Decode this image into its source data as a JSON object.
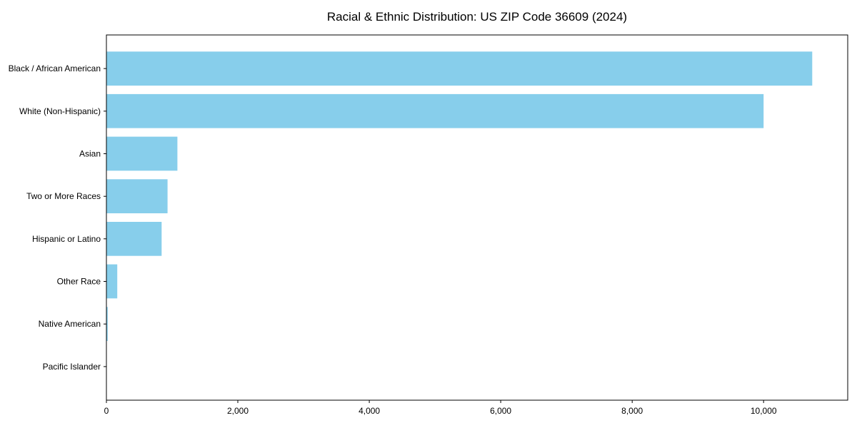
{
  "chart_data": {
    "type": "bar",
    "orientation": "horizontal",
    "title": "Racial & Ethnic Distribution: US ZIP Code 36609 (2024)",
    "categories": [
      "Black / African American",
      "White (Non-Hispanic)",
      "Asian",
      "Two or More Races",
      "Hispanic or Latino",
      "Other Race",
      "Native American",
      "Pacific Islander"
    ],
    "values": [
      10740,
      10000,
      1080,
      930,
      840,
      165,
      20,
      0
    ],
    "xlabel": "",
    "ylabel": "",
    "xlim": [
      0,
      11280
    ],
    "x_ticks": [
      0,
      2000,
      4000,
      6000,
      8000,
      10000
    ],
    "x_tick_labels": [
      "0",
      "2,000",
      "4,000",
      "6,000",
      "8,000",
      "10,000"
    ],
    "bar_color": "#87CEEB",
    "axis_color": "#000000",
    "grid": false,
    "legend": "none",
    "bars_grow_from": "left"
  }
}
